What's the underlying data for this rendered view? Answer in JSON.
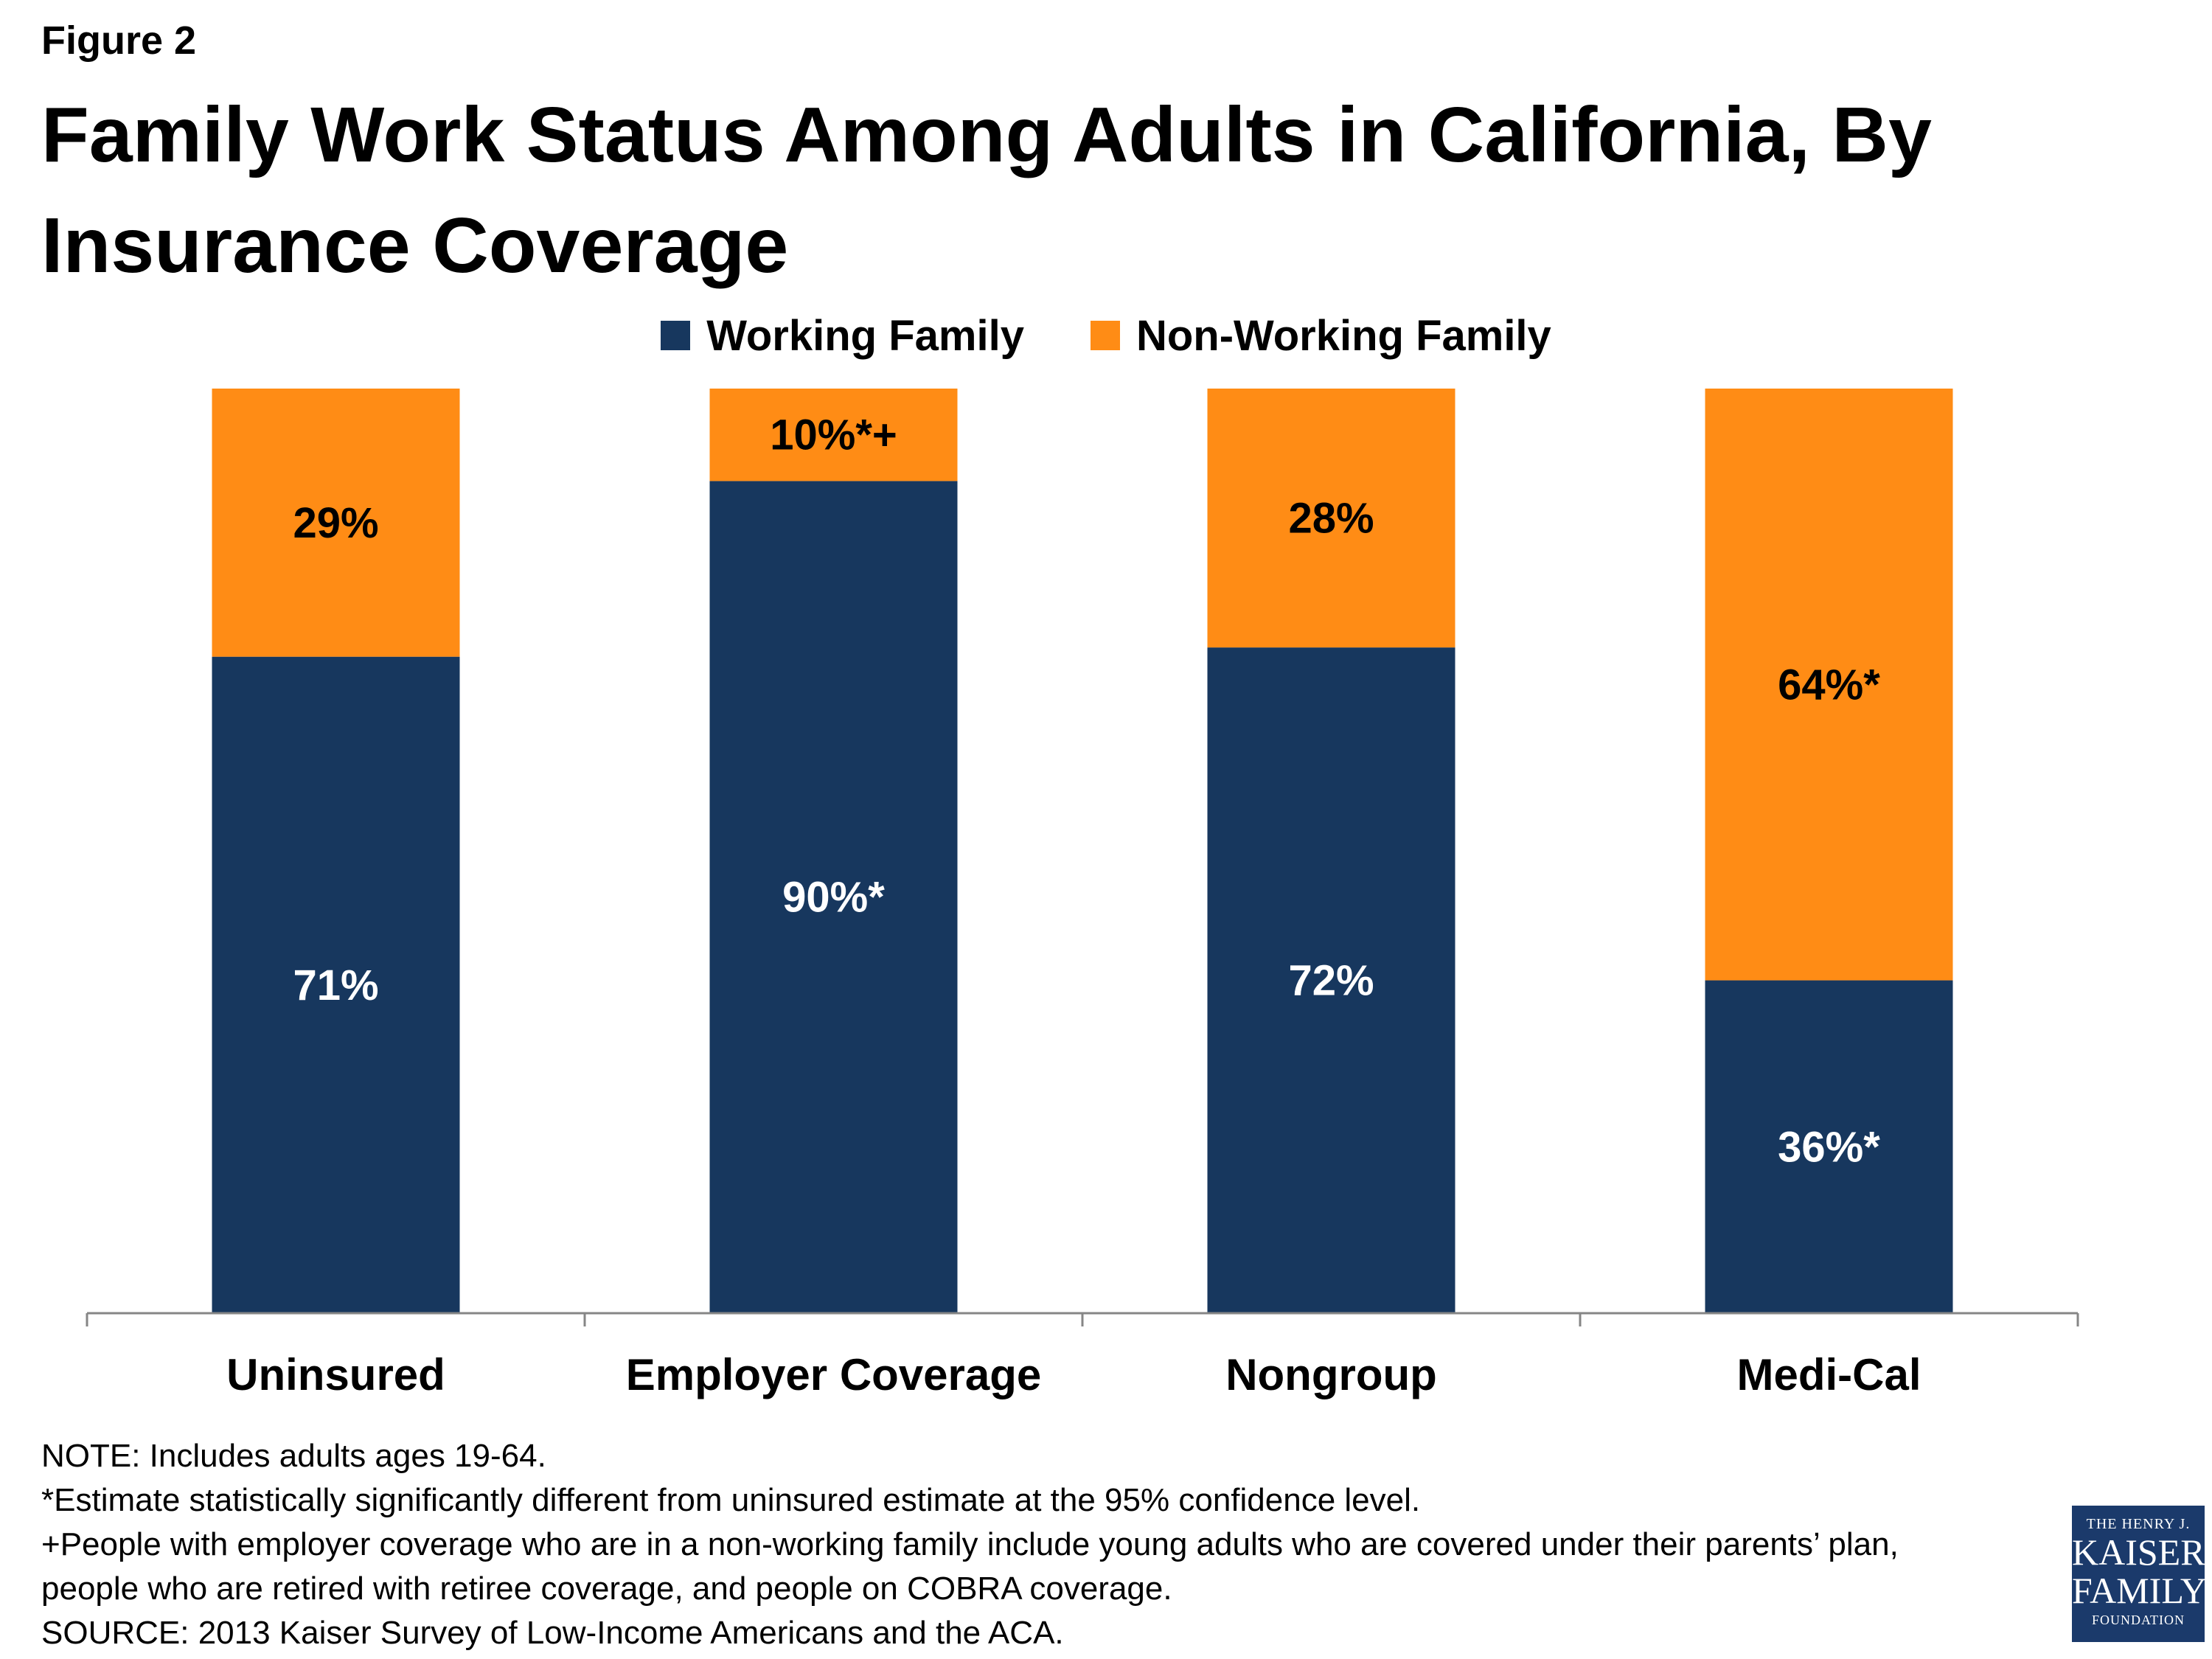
{
  "figure_label": "Figure 2",
  "title": "Family Work Status Among Adults in California, By Insurance Coverage",
  "legend": [
    {
      "label": "Working Family",
      "color": "#17375e"
    },
    {
      "label": "Non-Working Family",
      "color": "#ff8c15"
    }
  ],
  "chart_data": {
    "type": "bar",
    "stacked": true,
    "title": "Family Work Status Among Adults in California, By Insurance Coverage",
    "categories": [
      "Uninsured",
      "Employer Coverage",
      "Nongroup",
      "Medi-Cal"
    ],
    "series": [
      {
        "name": "Working Family",
        "color": "#17375e",
        "values": [
          71,
          90,
          72,
          36
        ],
        "labels": [
          "71%",
          "90%*",
          "72%",
          "36%*"
        ]
      },
      {
        "name": "Non-Working Family",
        "color": "#ff8c15",
        "values": [
          29,
          10,
          28,
          64
        ],
        "labels": [
          "29%",
          "10%*+",
          "28%",
          "64%*"
        ]
      }
    ],
    "ylim": [
      0,
      100
    ],
    "legend_position": "top-center",
    "grid": false
  },
  "notes": [
    "NOTE: Includes adults ages 19-64.",
    "*Estimate statistically significantly different from uninsured estimate  at the 95% confidence level.",
    "+People with employer coverage who are in a non-working family include young adults who are covered under their parents’ plan,",
    "people who are retired with retiree coverage, and people on COBRA coverage.",
    "SOURCE: 2013 Kaiser Survey of Low-Income Americans and the ACA."
  ],
  "logo": {
    "line1": "THE HENRY J.",
    "line2": "KAISER",
    "line3": "FAMILY",
    "line4": "FOUNDATION"
  }
}
